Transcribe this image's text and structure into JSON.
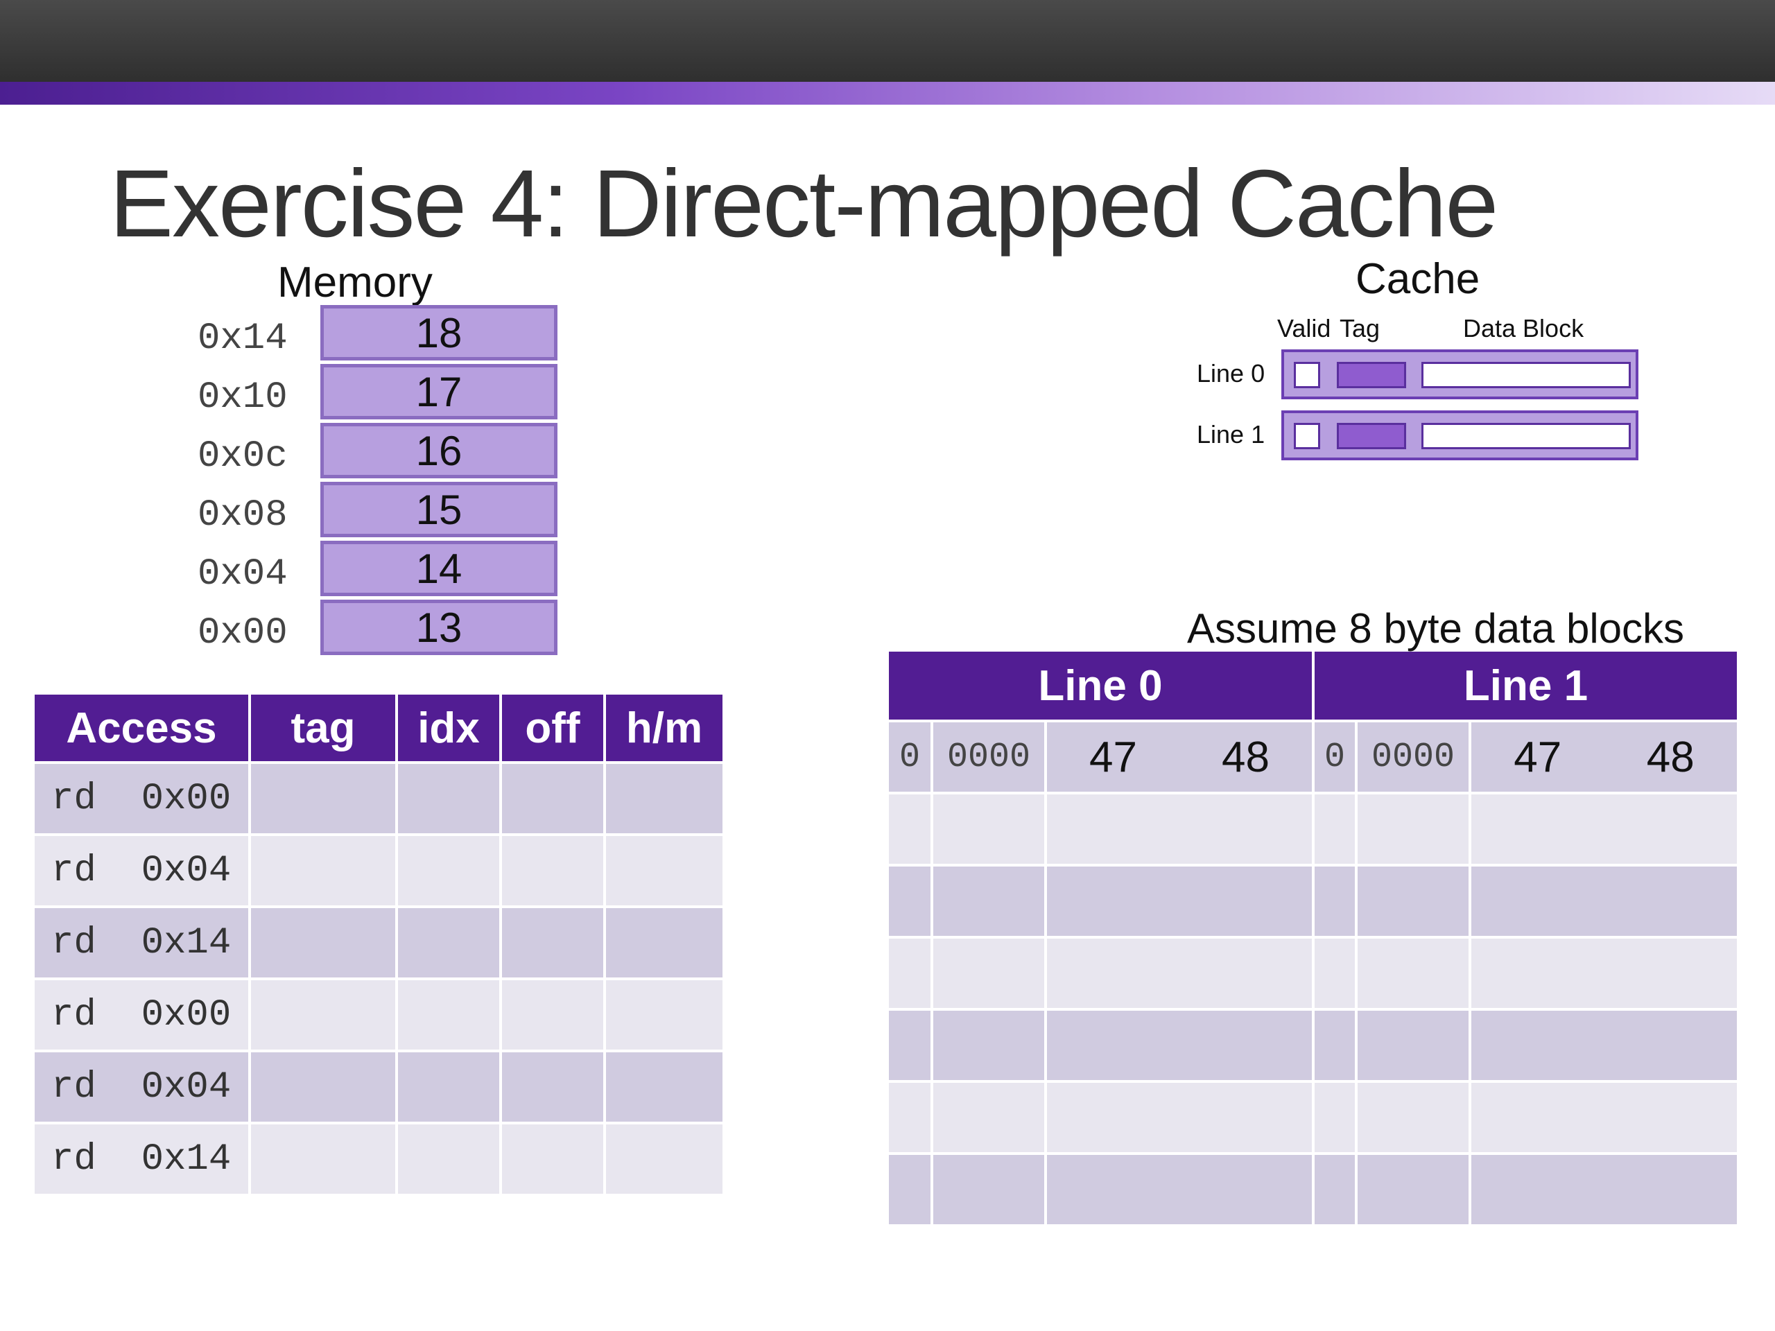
{
  "title": "Exercise 4: Direct-mapped Cache",
  "memory": {
    "title": "Memory",
    "rows": [
      {
        "addr": "0x14",
        "value": "18"
      },
      {
        "addr": "0x10",
        "value": "17"
      },
      {
        "addr": "0x0c",
        "value": "16"
      },
      {
        "addr": "0x08",
        "value": "15"
      },
      {
        "addr": "0x04",
        "value": "14"
      },
      {
        "addr": "0x00",
        "value": "13"
      }
    ]
  },
  "cache": {
    "title": "Cache",
    "col_valid": "Valid",
    "col_tag": "Tag",
    "col_data": "Data Block",
    "lines": [
      "Line 0",
      "Line 1"
    ]
  },
  "assume": "Assume 8 byte data blocks",
  "access_table": {
    "headers": [
      "Access",
      "tag",
      "idx",
      "off",
      "h/m"
    ],
    "rows": [
      "rd  0x00",
      "rd  0x04",
      "rd  0x14",
      "rd  0x00",
      "rd  0x04",
      "rd  0x14"
    ]
  },
  "lines_table": {
    "headers": [
      "Line 0",
      "Line 1"
    ],
    "first_row": {
      "line0": {
        "valid": "0",
        "tag": "0000",
        "data": [
          "47",
          "48"
        ]
      },
      "line1": {
        "valid": "0",
        "tag": "0000",
        "data": [
          "47",
          "48"
        ]
      }
    }
  }
}
